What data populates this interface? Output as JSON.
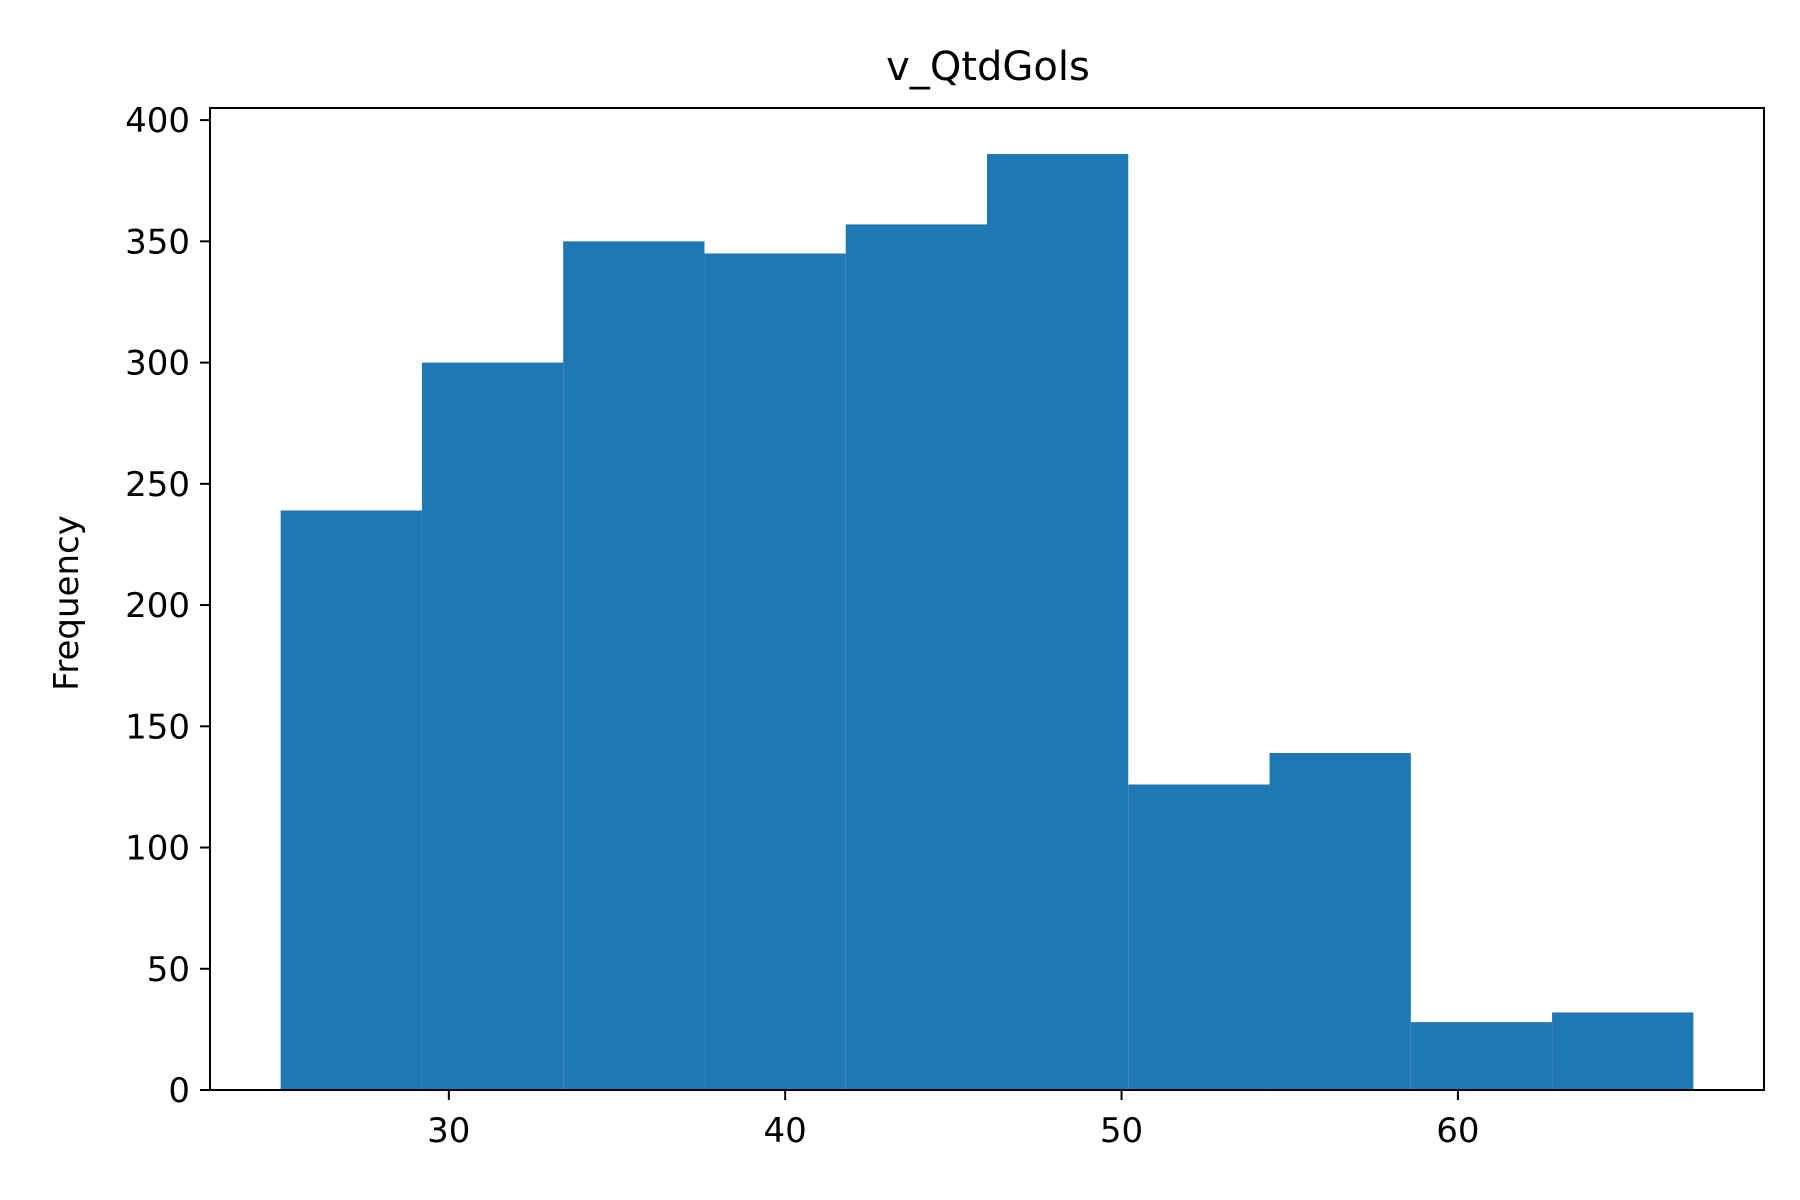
{
  "chart_data": {
    "type": "bar",
    "title": "v_QtdGols",
    "xlabel": "",
    "ylabel": "Frequency",
    "xlim": [
      22.9,
      69.1
    ],
    "ylim": [
      0,
      405
    ],
    "x_ticks": [
      30,
      40,
      50,
      60
    ],
    "y_ticks": [
      0,
      50,
      100,
      150,
      200,
      250,
      300,
      350,
      400
    ],
    "bin_edges": [
      25,
      29.2,
      33.4,
      37.6,
      41.8,
      46.0,
      50.2,
      54.4,
      58.6,
      62.8,
      67.0
    ],
    "values": [
      239,
      300,
      350,
      345,
      357,
      386,
      126,
      139,
      28,
      32
    ],
    "bar_color": "#1f77b4",
    "grid": false,
    "legend": "none"
  }
}
